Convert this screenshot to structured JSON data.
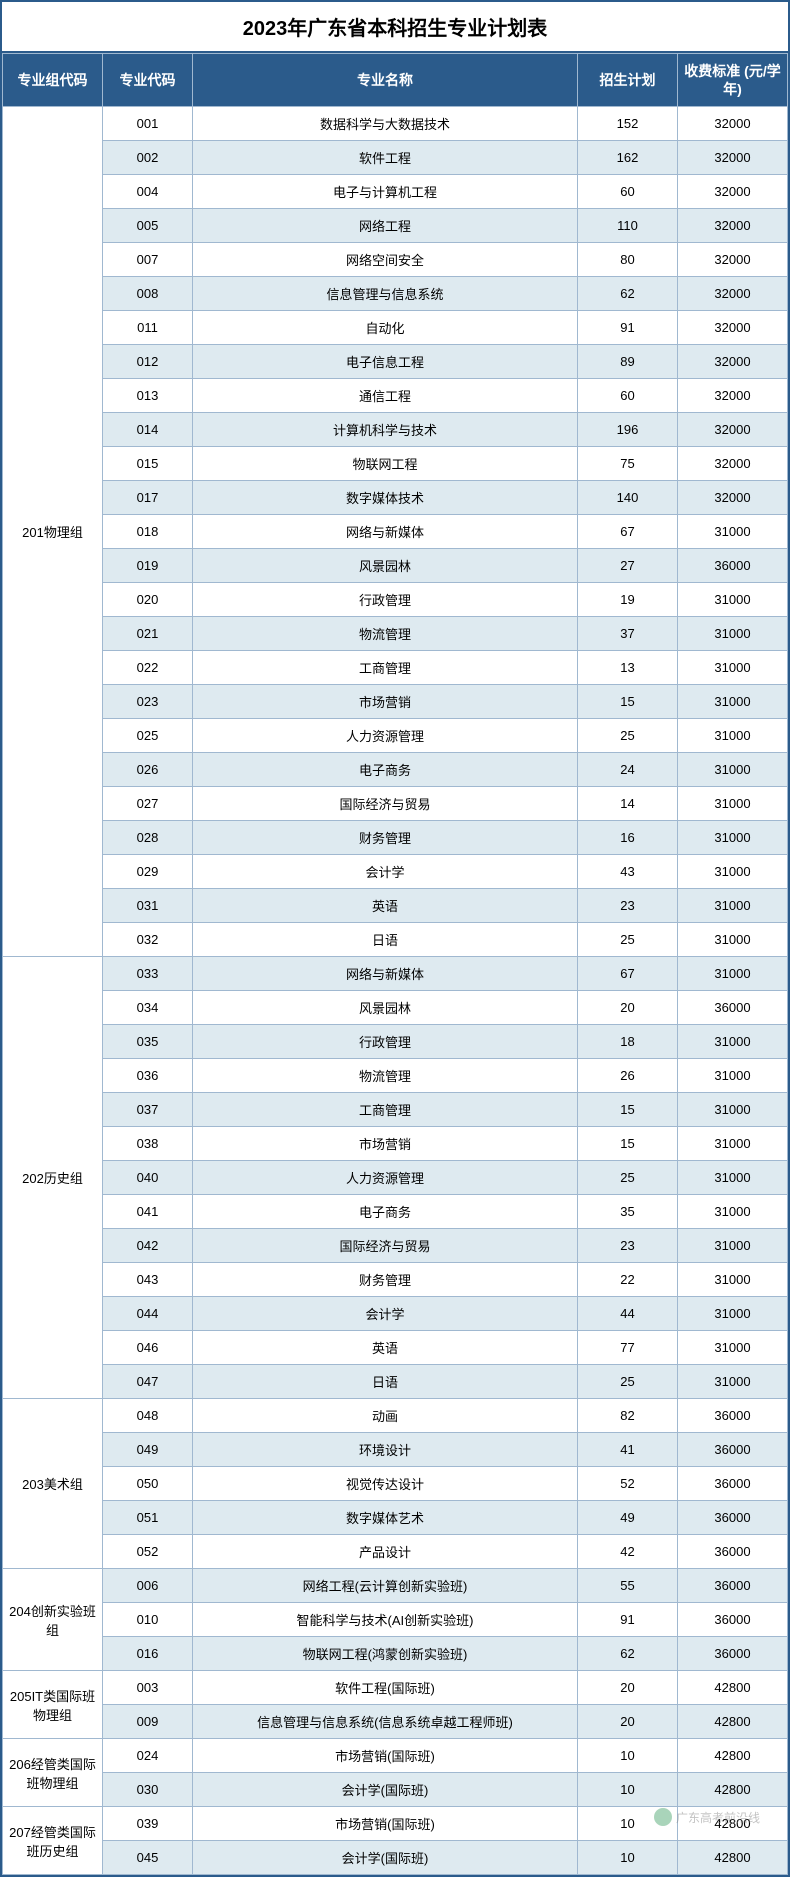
{
  "title": "2023年广东省本科招生专业计划表",
  "columns": [
    "专业组代码",
    "专业代码",
    "专业名称",
    "招生计划",
    "收费标准\n(元/学年)"
  ],
  "colors": {
    "header_bg": "#2b5b8b",
    "header_fg": "#ffffff",
    "border": "#a0b8d0",
    "alt_row": "#deeaf0"
  },
  "watermark": "广东高考前沿线",
  "groups": [
    {
      "label": "201物理组",
      "rows": [
        {
          "code": "001",
          "name": "数据科学与大数据技术",
          "plan": "152",
          "fee": "32000"
        },
        {
          "code": "002",
          "name": "软件工程",
          "plan": "162",
          "fee": "32000"
        },
        {
          "code": "004",
          "name": "电子与计算机工程",
          "plan": "60",
          "fee": "32000"
        },
        {
          "code": "005",
          "name": "网络工程",
          "plan": "110",
          "fee": "32000"
        },
        {
          "code": "007",
          "name": "网络空间安全",
          "plan": "80",
          "fee": "32000"
        },
        {
          "code": "008",
          "name": "信息管理与信息系统",
          "plan": "62",
          "fee": "32000"
        },
        {
          "code": "011",
          "name": "自动化",
          "plan": "91",
          "fee": "32000"
        },
        {
          "code": "012",
          "name": "电子信息工程",
          "plan": "89",
          "fee": "32000"
        },
        {
          "code": "013",
          "name": "通信工程",
          "plan": "60",
          "fee": "32000"
        },
        {
          "code": "014",
          "name": "计算机科学与技术",
          "plan": "196",
          "fee": "32000"
        },
        {
          "code": "015",
          "name": "物联网工程",
          "plan": "75",
          "fee": "32000"
        },
        {
          "code": "017",
          "name": "数字媒体技术",
          "plan": "140",
          "fee": "32000"
        },
        {
          "code": "018",
          "name": "网络与新媒体",
          "plan": "67",
          "fee": "31000"
        },
        {
          "code": "019",
          "name": "风景园林",
          "plan": "27",
          "fee": "36000"
        },
        {
          "code": "020",
          "name": "行政管理",
          "plan": "19",
          "fee": "31000"
        },
        {
          "code": "021",
          "name": "物流管理",
          "plan": "37",
          "fee": "31000"
        },
        {
          "code": "022",
          "name": "工商管理",
          "plan": "13",
          "fee": "31000"
        },
        {
          "code": "023",
          "name": "市场营销",
          "plan": "15",
          "fee": "31000"
        },
        {
          "code": "025",
          "name": "人力资源管理",
          "plan": "25",
          "fee": "31000"
        },
        {
          "code": "026",
          "name": "电子商务",
          "plan": "24",
          "fee": "31000"
        },
        {
          "code": "027",
          "name": "国际经济与贸易",
          "plan": "14",
          "fee": "31000"
        },
        {
          "code": "028",
          "name": "财务管理",
          "plan": "16",
          "fee": "31000"
        },
        {
          "code": "029",
          "name": "会计学",
          "plan": "43",
          "fee": "31000"
        },
        {
          "code": "031",
          "name": "英语",
          "plan": "23",
          "fee": "31000"
        },
        {
          "code": "032",
          "name": "日语",
          "plan": "25",
          "fee": "31000"
        }
      ]
    },
    {
      "label": "202历史组",
      "rows": [
        {
          "code": "033",
          "name": "网络与新媒体",
          "plan": "67",
          "fee": "31000"
        },
        {
          "code": "034",
          "name": "风景园林",
          "plan": "20",
          "fee": "36000"
        },
        {
          "code": "035",
          "name": "行政管理",
          "plan": "18",
          "fee": "31000"
        },
        {
          "code": "036",
          "name": "物流管理",
          "plan": "26",
          "fee": "31000"
        },
        {
          "code": "037",
          "name": "工商管理",
          "plan": "15",
          "fee": "31000"
        },
        {
          "code": "038",
          "name": "市场营销",
          "plan": "15",
          "fee": "31000"
        },
        {
          "code": "040",
          "name": "人力资源管理",
          "plan": "25",
          "fee": "31000"
        },
        {
          "code": "041",
          "name": "电子商务",
          "plan": "35",
          "fee": "31000"
        },
        {
          "code": "042",
          "name": "国际经济与贸易",
          "plan": "23",
          "fee": "31000"
        },
        {
          "code": "043",
          "name": "财务管理",
          "plan": "22",
          "fee": "31000"
        },
        {
          "code": "044",
          "name": "会计学",
          "plan": "44",
          "fee": "31000"
        },
        {
          "code": "046",
          "name": "英语",
          "plan": "77",
          "fee": "31000"
        },
        {
          "code": "047",
          "name": "日语",
          "plan": "25",
          "fee": "31000"
        }
      ]
    },
    {
      "label": "203美术组",
      "rows": [
        {
          "code": "048",
          "name": "动画",
          "plan": "82",
          "fee": "36000"
        },
        {
          "code": "049",
          "name": "环境设计",
          "plan": "41",
          "fee": "36000"
        },
        {
          "code": "050",
          "name": "视觉传达设计",
          "plan": "52",
          "fee": "36000"
        },
        {
          "code": "051",
          "name": "数字媒体艺术",
          "plan": "49",
          "fee": "36000"
        },
        {
          "code": "052",
          "name": "产品设计",
          "plan": "42",
          "fee": "36000"
        }
      ]
    },
    {
      "label": "204创新实验班组",
      "rows": [
        {
          "code": "006",
          "name": "网络工程(云计算创新实验班)",
          "plan": "55",
          "fee": "36000"
        },
        {
          "code": "010",
          "name": "智能科学与技术(AI创新实验班)",
          "plan": "91",
          "fee": "36000"
        },
        {
          "code": "016",
          "name": "物联网工程(鸿蒙创新实验班)",
          "plan": "62",
          "fee": "36000"
        }
      ]
    },
    {
      "label": "205IT类国际班物理组",
      "rows": [
        {
          "code": "003",
          "name": "软件工程(国际班)",
          "plan": "20",
          "fee": "42800"
        },
        {
          "code": "009",
          "name": "信息管理与信息系统(信息系统卓越工程师班)",
          "plan": "20",
          "fee": "42800"
        }
      ]
    },
    {
      "label": "206经管类国际班物理组",
      "rows": [
        {
          "code": "024",
          "name": "市场营销(国际班)",
          "plan": "10",
          "fee": "42800"
        },
        {
          "code": "030",
          "name": "会计学(国际班)",
          "plan": "10",
          "fee": "42800"
        }
      ]
    },
    {
      "label": "207经管类国际班历史组",
      "rows": [
        {
          "code": "039",
          "name": "市场营销(国际班)",
          "plan": "10",
          "fee": "42800"
        },
        {
          "code": "045",
          "name": "会计学(国际班)",
          "plan": "10",
          "fee": "42800"
        }
      ]
    }
  ]
}
